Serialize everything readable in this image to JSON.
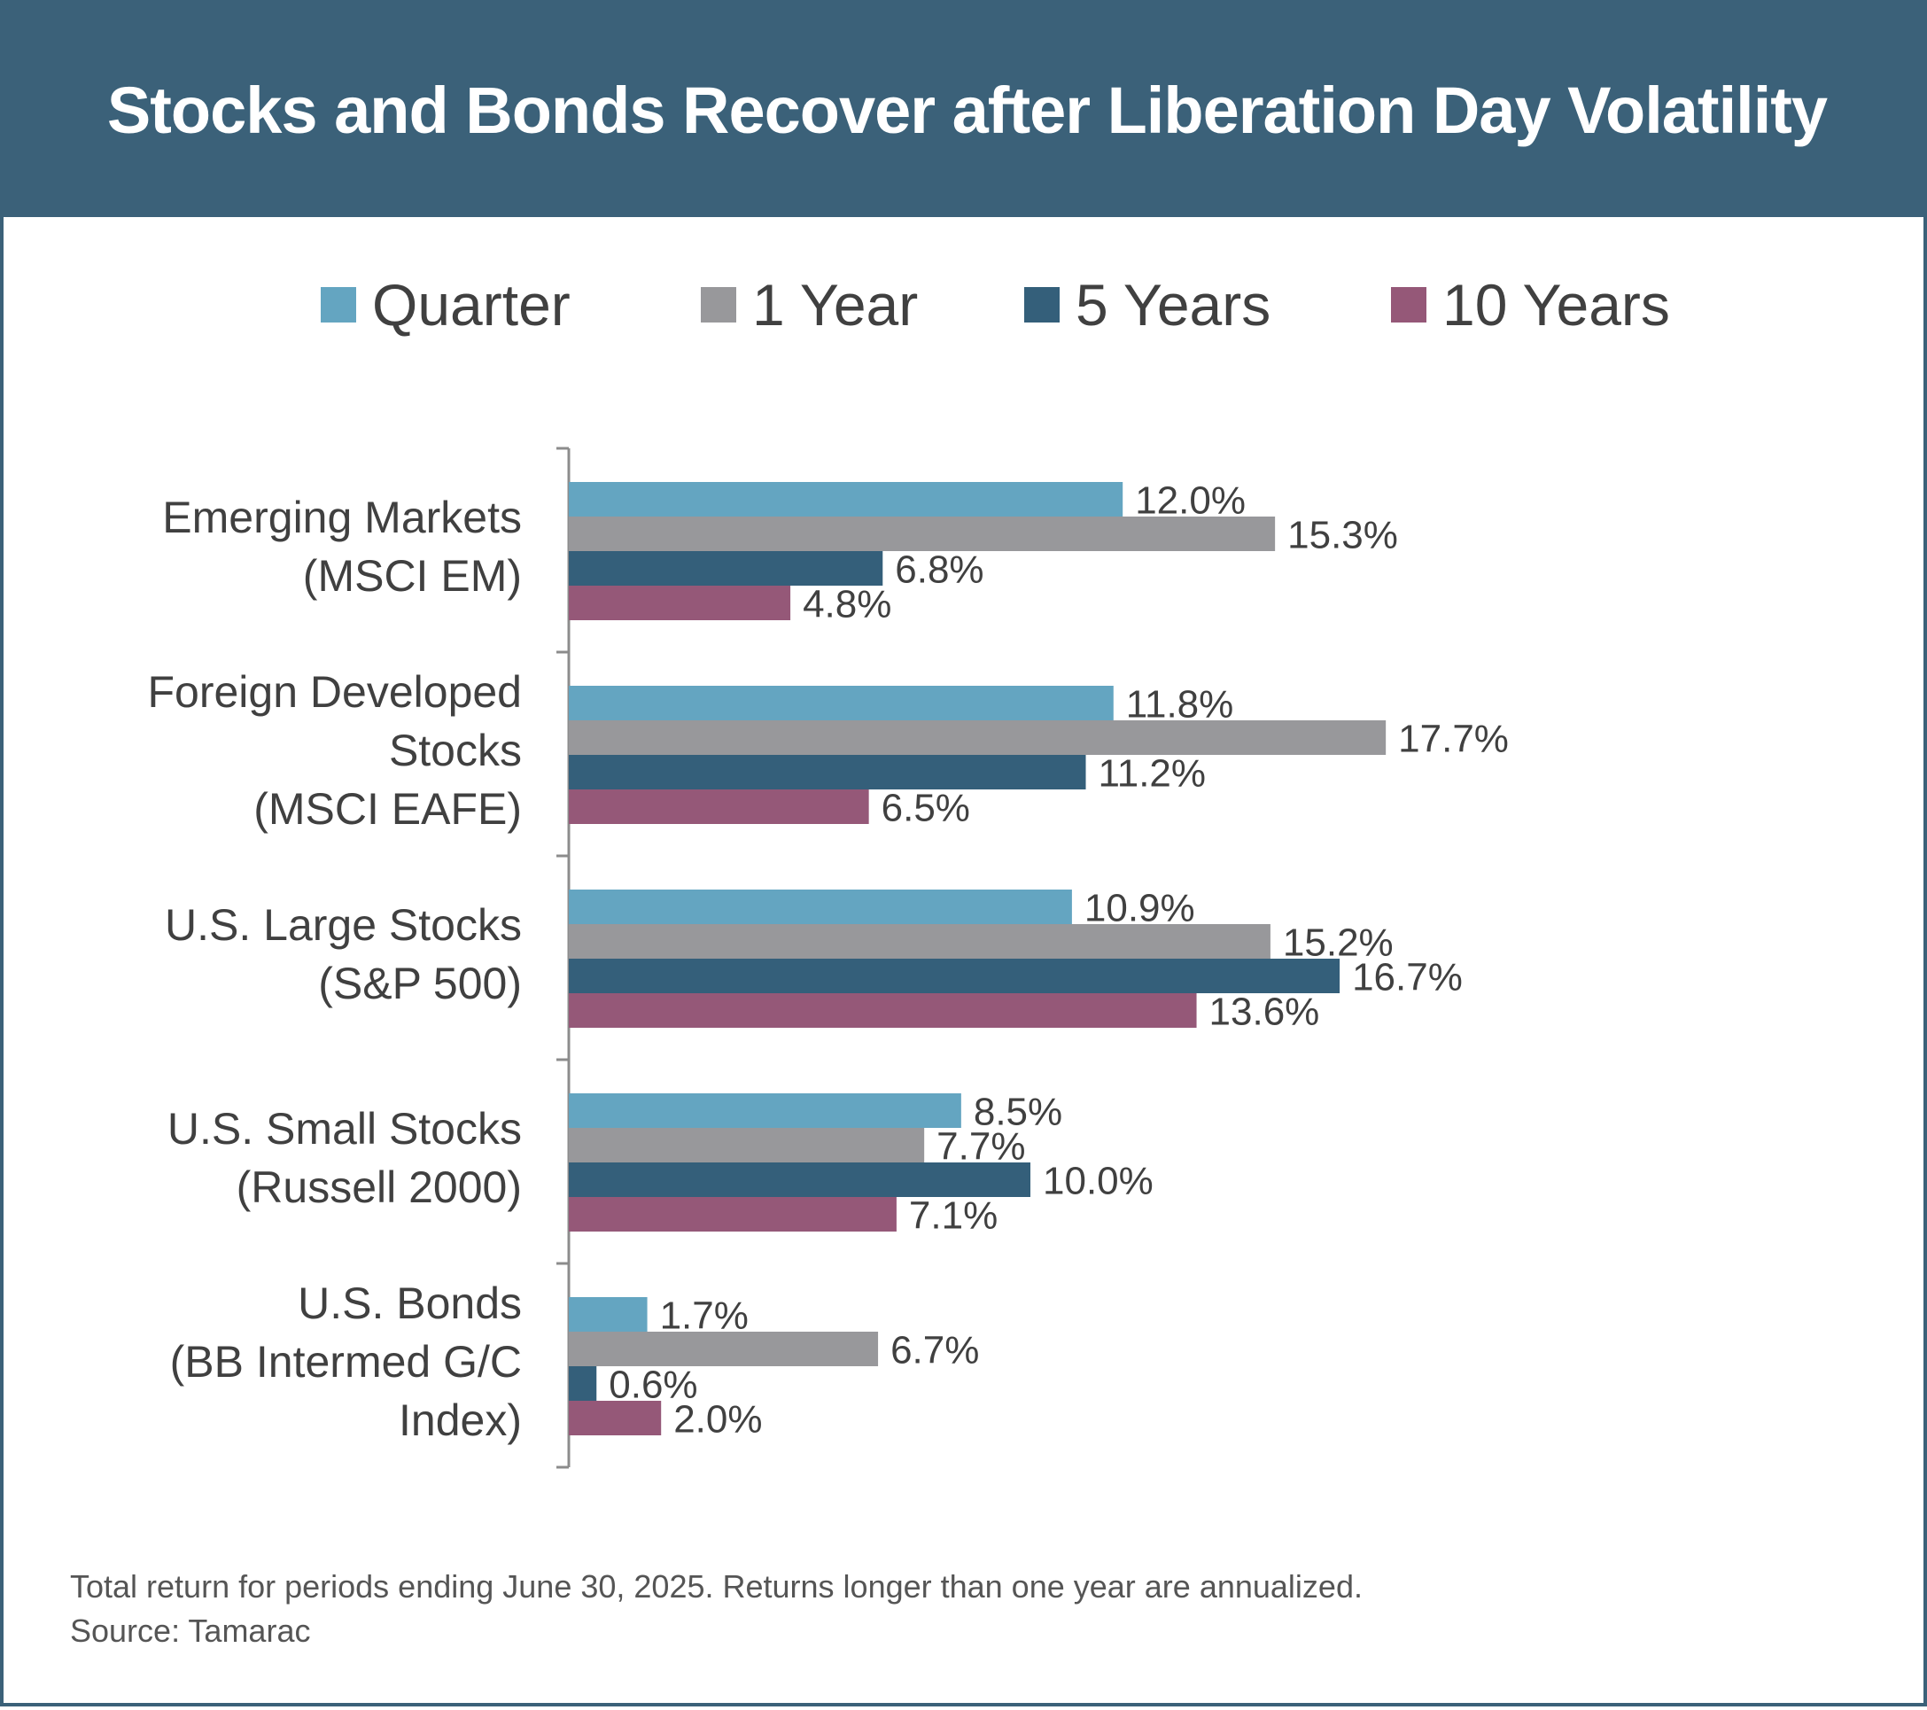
{
  "title": "Stocks and Bonds Recover after Liberation Day Volatility",
  "colors": {
    "header": "#3b6179",
    "Quarter": "#64a5c1",
    "1 Year": "#98989b",
    "5 Years": "#345f7a",
    "10 Years": "#955878"
  },
  "legend": [
    "Quarter",
    "1 Year",
    "5 Years",
    "10 Years"
  ],
  "chart_data": {
    "type": "bar",
    "orientation": "horizontal",
    "categories": [
      [
        "Emerging Markets",
        "(MSCI EM)"
      ],
      [
        "Foreign Developed",
        "Stocks",
        "(MSCI EAFE)"
      ],
      [
        "U.S. Large Stocks",
        "(S&P 500)"
      ],
      [
        "U.S. Small Stocks",
        "(Russell 2000)"
      ],
      [
        "U.S. Bonds",
        "(BB Intermed G/C",
        "Index)"
      ]
    ],
    "series": [
      {
        "name": "Quarter",
        "values": [
          12.0,
          11.8,
          10.9,
          8.5,
          1.7
        ],
        "labels": [
          "12.0%",
          "11.8%",
          "10.9%",
          "8.5%",
          "1.7%"
        ]
      },
      {
        "name": "1 Year",
        "values": [
          15.3,
          17.7,
          15.2,
          7.7,
          6.7
        ],
        "labels": [
          "15.3%",
          "17.7%",
          "15.2%",
          "7.7%",
          "6.7%"
        ]
      },
      {
        "name": "5 Years",
        "values": [
          6.8,
          11.2,
          16.7,
          10.0,
          0.6
        ],
        "labels": [
          "6.8%",
          "11.2%",
          "16.7%",
          "10.0%",
          "0.6%"
        ]
      },
      {
        "name": "10 Years",
        "values": [
          4.8,
          6.5,
          13.6,
          7.1,
          2.0
        ],
        "labels": [
          "4.8%",
          "6.5%",
          "13.6%",
          "7.1%",
          "2.0%"
        ]
      }
    ],
    "xlim": [
      0,
      20
    ],
    "grid": false,
    "legend_position": "top"
  },
  "footnote": {
    "line1": "Total return for periods ending June 30, 2025. Returns longer than one year are annualized.",
    "line2": "Source: Tamarac"
  }
}
